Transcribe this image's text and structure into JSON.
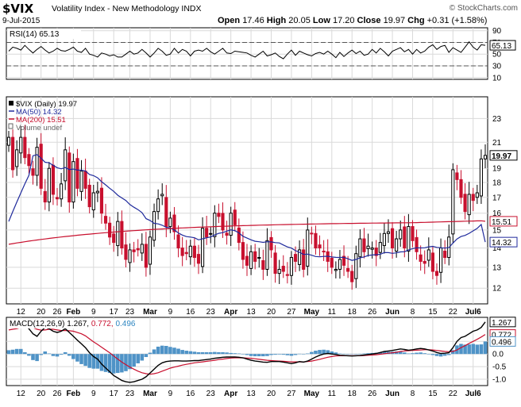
{
  "header": {
    "ticker": "$VIX",
    "description": "Volatility Index - New Methodology  INDX",
    "date": "9-Jul-2015",
    "credit": "© StockCharts.com",
    "open_label": "Open",
    "open": "17.46",
    "high_label": "High",
    "high": "20.05",
    "low_label": "Low",
    "low": "17.20",
    "close_label": "Close",
    "close": "19.97",
    "chg_label": "Chg",
    "chg": "+0.31 (+1.58%)"
  },
  "chart_data": [
    {
      "type": "line",
      "panel": "rsi",
      "legend": "RSI(14) 65.13",
      "ylim": [
        7,
        95
      ],
      "yticks": [
        10,
        30,
        50,
        70,
        90
      ],
      "reference_lines": [
        30,
        70
      ],
      "last_value": 65.13,
      "series": [
        {
          "name": "RSI(14)",
          "color": "#000000",
          "values": [
            55,
            62,
            60,
            57,
            65,
            58,
            52,
            58,
            63,
            57,
            52,
            55,
            60,
            56,
            55,
            58,
            62,
            55,
            53,
            60,
            50,
            48,
            45,
            52,
            50,
            47,
            49,
            45,
            45,
            50,
            55,
            50,
            52,
            58,
            52,
            45,
            52,
            60,
            55,
            48,
            50,
            60,
            52,
            58,
            55,
            47,
            55,
            57,
            55,
            60,
            54,
            50,
            55,
            60,
            52,
            51,
            55,
            54,
            53,
            52,
            48,
            45,
            50,
            55,
            47,
            49,
            52,
            46,
            42,
            50,
            57,
            48,
            55,
            52,
            49,
            47,
            51,
            53,
            50,
            55,
            50,
            44,
            53,
            46,
            52,
            57,
            51,
            55,
            48,
            50,
            58,
            52,
            60,
            54,
            47,
            55,
            58,
            61,
            54,
            58,
            50,
            58,
            52,
            55,
            62,
            66,
            58,
            63,
            65,
            53,
            61,
            57,
            53,
            62,
            71,
            62,
            57,
            66,
            65.13
          ]
        }
      ]
    },
    {
      "type": "candlestick",
      "panel": "price",
      "legend": [
        "$VIX (Daily) 19.97",
        "MA(50) 14.32",
        "MA(200) 15.51",
        "Volume undef"
      ],
      "yscale": "log",
      "ylim": [
        11.3,
        25.0
      ],
      "yticks": [
        12,
        13,
        14,
        15,
        16,
        17,
        18,
        19,
        21,
        23
      ],
      "last_price": 19.97,
      "ma50_last": 14.32,
      "ma200_last": 15.51,
      "colors": {
        "up": "#000000",
        "down": "#c8102e",
        "ma50": "#1f2a9c",
        "ma200": "#c8102e"
      },
      "closes": [
        21.4,
        18.9,
        20.4,
        21.4,
        19.8,
        19.2,
        18.5,
        20.6,
        17.6,
        16.7,
        19.0,
        17.2,
        16.9,
        17.9,
        20.4,
        16.7,
        19.5,
        17.6,
        18.8,
        17.6,
        16.4,
        17.3,
        17.4,
        16.0,
        15.4,
        14.6,
        14.3,
        15.5,
        14.0,
        13.4,
        13.9,
        13.8,
        13.9,
        14.2,
        13.0,
        14.6,
        16.1,
        16.9,
        17.2,
        15.2,
        15.7,
        14.9,
        14.0,
        13.6,
        13.7,
        14.1,
        13.5,
        13.2,
        15.1,
        14.6,
        14.8,
        16.0,
        15.8,
        15.0,
        14.7,
        16.0,
        15.3,
        14.3,
        13.4,
        13.1,
        13.8,
        13.3,
        13.5,
        12.9,
        14.4,
        13.9,
        12.7,
        12.9,
        12.8,
        12.6,
        13.5,
        13.3,
        13.9,
        12.9,
        15.0,
        14.8,
        14.0,
        14.0,
        13.8,
        13.3,
        13.0,
        12.9,
        13.4,
        13.1,
        12.8,
        12.3,
        13.7,
        14.5,
        13.8,
        14.1,
        14.0,
        13.6,
        14.3,
        14.8,
        14.9,
        14.0,
        14.5,
        15.0,
        14.0,
        15.2,
        14.4,
        13.8,
        13.3,
        13.2,
        13.9,
        12.8,
        12.6,
        14.0,
        13.5,
        14.6,
        18.9,
        18.2,
        17.0,
        16.1,
        17.2,
        16.8,
        17.3,
        19.7,
        19.97
      ],
      "x_tick_labels": [
        "12",
        "20",
        "26",
        "Feb",
        "9",
        "17",
        "23",
        "Mar",
        "9",
        "16",
        "23",
        "Apr",
        "13",
        "20",
        "27",
        "May",
        "11",
        "18",
        "26",
        "Jun",
        "8",
        "15",
        "22",
        "Jul6"
      ]
    },
    {
      "type": "line",
      "panel": "macd",
      "legend_prefix": "MACD(12,26,9)",
      "legend_values": [
        {
          "text": "1.267",
          "color": "#000000"
        },
        {
          "text": "0.772",
          "color": "#c8102e"
        },
        {
          "text": "0.496",
          "color": "#2e86c1"
        }
      ],
      "ylim": [
        -1.25,
        1.45
      ],
      "yticks": [
        -1.0,
        -0.5,
        0.0,
        0.5
      ],
      "last_values": {
        "macd": 1.267,
        "signal": 0.772,
        "histogram": 0.496
      },
      "series": [
        {
          "name": "MACD",
          "color": "#000000",
          "values": [
            1.1,
            1.15,
            1.2,
            1.25,
            1.15,
            1.0,
            0.8,
            0.7,
            0.9,
            1.05,
            1.0,
            0.9,
            0.85,
            0.9,
            1.0,
            0.85,
            0.7,
            0.55,
            0.4,
            0.25,
            0.05,
            -0.1,
            -0.2,
            -0.4,
            -0.55,
            -0.7,
            -0.85,
            -0.95,
            -1.05,
            -1.1,
            -1.12,
            -1.1,
            -1.05,
            -1.0,
            -0.9,
            -0.75,
            -0.6,
            -0.45,
            -0.35,
            -0.3,
            -0.28,
            -0.27,
            -0.27,
            -0.28,
            -0.28,
            -0.27,
            -0.26,
            -0.26,
            -0.24,
            -0.22,
            -0.2,
            -0.17,
            -0.15,
            -0.13,
            -0.12,
            -0.12,
            -0.12,
            -0.13,
            -0.15,
            -0.2,
            -0.25,
            -0.28,
            -0.3,
            -0.32,
            -0.33,
            -0.3,
            -0.3,
            -0.3,
            -0.32,
            -0.35,
            -0.38,
            -0.35,
            -0.3,
            -0.32,
            -0.28,
            -0.2,
            -0.12,
            -0.05,
            0.0,
            0.02,
            0.0,
            -0.02,
            -0.05,
            -0.06,
            -0.07,
            -0.08,
            -0.07,
            -0.06,
            -0.04,
            -0.02,
            0.0,
            0.02,
            0.06,
            0.1,
            0.12,
            0.14,
            0.17,
            0.2,
            0.18,
            0.15,
            0.17,
            0.2,
            0.22,
            0.2,
            0.16,
            0.12,
            0.06,
            0.02,
            0.03,
            0.05,
            0.25,
            0.5,
            0.65,
            0.7,
            0.8,
            0.9,
            0.95,
            1.05,
            1.267
          ]
        },
        {
          "name": "Signal",
          "color": "#c8102e",
          "values": [
            0.95,
            0.98,
            1.0,
            1.05,
            1.08,
            1.07,
            1.04,
            0.98,
            0.94,
            0.95,
            0.98,
            0.98,
            0.95,
            0.93,
            0.93,
            0.92,
            0.9,
            0.85,
            0.8,
            0.72,
            0.6,
            0.48,
            0.38,
            0.27,
            0.16,
            0.05,
            -0.08,
            -0.2,
            -0.32,
            -0.42,
            -0.52,
            -0.6,
            -0.68,
            -0.74,
            -0.78,
            -0.8,
            -0.78,
            -0.74,
            -0.68,
            -0.62,
            -0.56,
            -0.52,
            -0.48,
            -0.44,
            -0.41,
            -0.38,
            -0.35,
            -0.33,
            -0.31,
            -0.29,
            -0.27,
            -0.25,
            -0.22,
            -0.2,
            -0.18,
            -0.16,
            -0.15,
            -0.15,
            -0.15,
            -0.16,
            -0.17,
            -0.19,
            -0.21,
            -0.23,
            -0.25,
            -0.26,
            -0.27,
            -0.28,
            -0.29,
            -0.3,
            -0.31,
            -0.31,
            -0.31,
            -0.31,
            -0.3,
            -0.28,
            -0.25,
            -0.21,
            -0.17,
            -0.13,
            -0.1,
            -0.08,
            -0.07,
            -0.07,
            -0.07,
            -0.07,
            -0.07,
            -0.07,
            -0.06,
            -0.05,
            -0.04,
            -0.03,
            -0.01,
            0.01,
            0.03,
            0.05,
            0.07,
            0.1,
            0.12,
            0.13,
            0.14,
            0.15,
            0.16,
            0.17,
            0.17,
            0.16,
            0.14,
            0.12,
            0.1,
            0.09,
            0.1,
            0.16,
            0.25,
            0.33,
            0.42,
            0.5,
            0.58,
            0.67,
            0.772
          ]
        }
      ],
      "histogram_color": "#4f93c7",
      "x_tick_labels": [
        "12",
        "20",
        "26",
        "Feb",
        "9",
        "17",
        "23",
        "Mar",
        "9",
        "16",
        "23",
        "Apr",
        "13",
        "20",
        "27",
        "May",
        "11",
        "18",
        "26",
        "Jun",
        "8",
        "15",
        "22",
        "Jul6"
      ]
    }
  ]
}
